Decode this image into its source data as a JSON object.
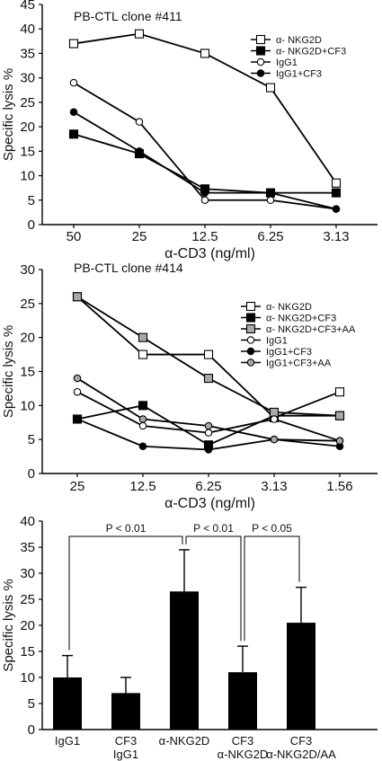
{
  "chart_data": [
    {
      "type": "line",
      "title": "PB-CTL clone #411",
      "xlabel": "α-CD3 (ng/ml)",
      "ylabel": "Specific lysis  %",
      "categories": [
        "50",
        "25",
        "12.5",
        "6.25",
        "3.13"
      ],
      "ylim": [
        0,
        45
      ],
      "yticks": [
        "0",
        "5",
        "10",
        "15",
        "20",
        "25",
        "30",
        "35",
        "40",
        "45"
      ],
      "grid": false,
      "legend_position": "top-right",
      "series": [
        {
          "name": "α- NKG2D",
          "marker": "open-square",
          "values": [
            37,
            39,
            35,
            28,
            8.5
          ]
        },
        {
          "name": "α- NKG2D+CF3",
          "marker": "filled-square",
          "values": [
            18.5,
            14.5,
            7.3,
            6.5,
            6.5
          ]
        },
        {
          "name": "IgG1",
          "marker": "open-circle",
          "values": [
            29,
            21,
            5,
            5,
            3.2
          ]
        },
        {
          "name": "IgG1+CF3",
          "marker": "filled-circle",
          "values": [
            23,
            15,
            6.5,
            6.5,
            3.2
          ]
        }
      ]
    },
    {
      "type": "line",
      "title": "PB-CTL clone #414",
      "xlabel": "α-CD3 (ng/ml)",
      "ylabel": "Specific lysis  %",
      "categories": [
        "25",
        "12.5",
        "6.25",
        "3.13",
        "1.56"
      ],
      "ylim": [
        0,
        30
      ],
      "yticks": [
        "0",
        "5",
        "10",
        "15",
        "20",
        "25",
        "30"
      ],
      "grid": false,
      "legend_position": "top-right",
      "series": [
        {
          "name": "α-  NKG2D",
          "marker": "open-square",
          "values": [
            26,
            17.5,
            17.5,
            8.2,
            12
          ]
        },
        {
          "name": "α-  NKG2D+CF3",
          "marker": "filled-square",
          "values": [
            8,
            10,
            4.2,
            8.5,
            8.5
          ]
        },
        {
          "name": "α-  NKG2D+CF3+AA",
          "marker": "gray-square",
          "values": [
            26,
            20,
            14,
            9,
            8.5
          ]
        },
        {
          "name": "IgG1",
          "marker": "open-circle",
          "values": [
            12,
            7,
            6,
            8,
            4.8
          ]
        },
        {
          "name": "IgG1+CF3",
          "marker": "filled-circle",
          "values": [
            8,
            4,
            3.5,
            5,
            4
          ]
        },
        {
          "name": "IgG1+CF3+AA",
          "marker": "gray-circle",
          "values": [
            14,
            8,
            7,
            5,
            4.8
          ]
        }
      ]
    },
    {
      "type": "bar",
      "ylabel": "Specific lysis  %",
      "ylim": [
        0,
        40
      ],
      "yticks": [
        "0",
        "5",
        "10",
        "15",
        "20",
        "25",
        "30",
        "35",
        "40"
      ],
      "grid": false,
      "categories": [
        {
          "line1": "IgG1",
          "line2": ""
        },
        {
          "line1": "CF3",
          "line2": "IgG1"
        },
        {
          "line1": "α-NKG2D",
          "line2": ""
        },
        {
          "line1": "CF3",
          "line2": "α-NKG2D"
        },
        {
          "line1": "CF3",
          "line2": "α-NKG2D/AA"
        }
      ],
      "values": [
        10,
        7,
        26.5,
        11,
        20.5
      ],
      "errors": [
        4.2,
        3,
        8,
        5,
        6.8
      ],
      "significance": [
        {
          "from": 0,
          "to": 2,
          "label": "P < 0.01"
        },
        {
          "from": 2,
          "to": 3,
          "label": "P < 0.01"
        },
        {
          "from": 3,
          "to": 4,
          "label": "P < 0.05"
        }
      ]
    }
  ]
}
